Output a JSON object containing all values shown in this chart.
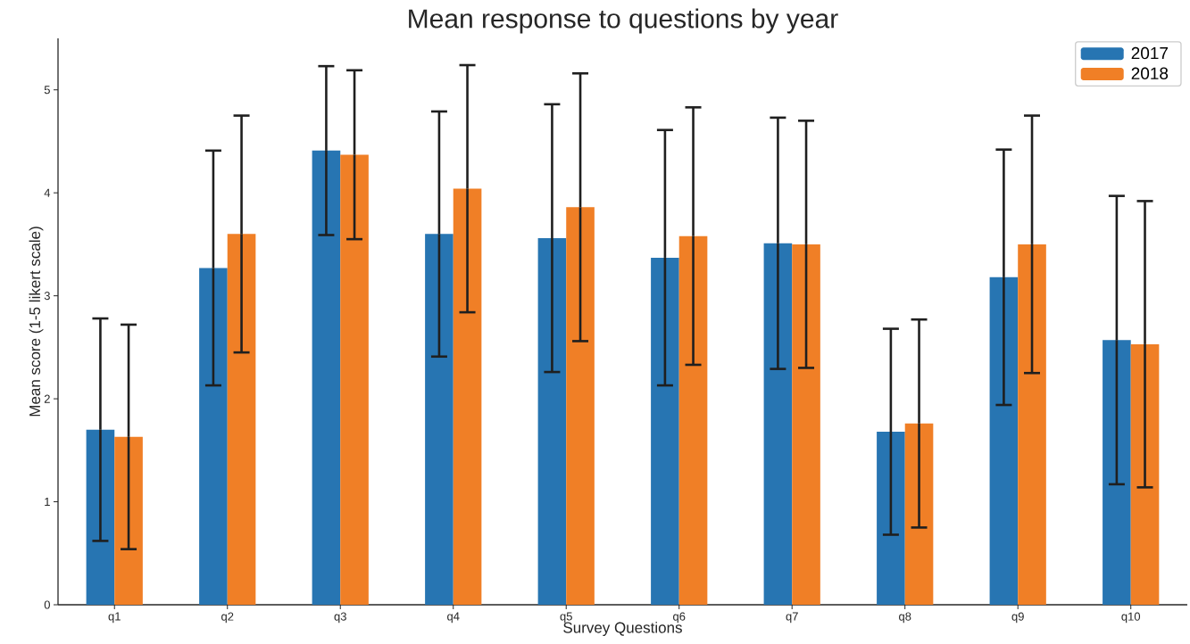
{
  "chart_data": {
    "type": "bar",
    "title": "Mean response to questions by year",
    "xlabel": "Survey Questions",
    "ylabel": "Mean score (1-5 likert scale)",
    "categories": [
      "q1",
      "q2",
      "q3",
      "q4",
      "q5",
      "q6",
      "q7",
      "q8",
      "q9",
      "q10"
    ],
    "series": [
      {
        "name": "2017",
        "color": "#2775b2",
        "values": [
          1.7,
          3.27,
          4.41,
          3.6,
          3.56,
          3.37,
          3.51,
          1.68,
          3.18,
          2.57
        ],
        "errors": [
          1.08,
          1.14,
          0.82,
          1.19,
          1.3,
          1.24,
          1.22,
          1.0,
          1.24,
          1.4
        ]
      },
      {
        "name": "2018",
        "color": "#f07f26",
        "values": [
          1.63,
          3.6,
          4.37,
          4.04,
          3.86,
          3.58,
          3.5,
          1.76,
          3.5,
          2.53
        ],
        "errors": [
          1.09,
          1.15,
          0.82,
          1.2,
          1.3,
          1.25,
          1.2,
          1.01,
          1.25,
          1.39
        ]
      }
    ],
    "ylim": [
      0,
      5.5
    ],
    "yticks": [
      0,
      1,
      2,
      3,
      4,
      5
    ],
    "legend": "top right",
    "grid": false
  }
}
